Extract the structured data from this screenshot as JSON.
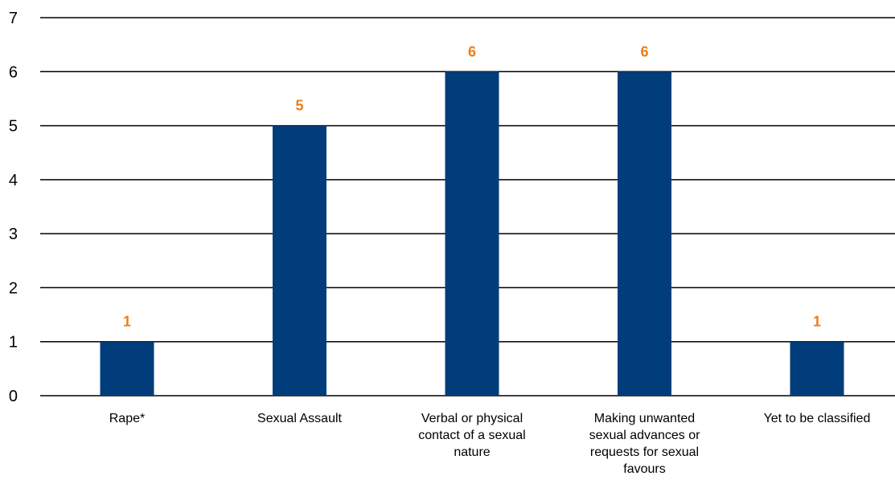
{
  "chart_data": {
    "type": "bar",
    "categories": [
      [
        "Rape*"
      ],
      [
        "Sexual Assault"
      ],
      [
        "Verbal or physical",
        "contact of a sexual",
        "nature"
      ],
      [
        "Making unwanted",
        "sexual advances or",
        "requests for sexual",
        "favours"
      ],
      [
        "Yet to be classified"
      ]
    ],
    "values": [
      1,
      5,
      6,
      6,
      1
    ],
    "ylim": [
      0,
      7
    ],
    "yticks": [
      0,
      1,
      2,
      3,
      4,
      5,
      6,
      7
    ],
    "grid": true,
    "bar_color": "#003d7a",
    "label_color": "#ed7d1a",
    "title": "",
    "xlabel": "",
    "ylabel": ""
  }
}
